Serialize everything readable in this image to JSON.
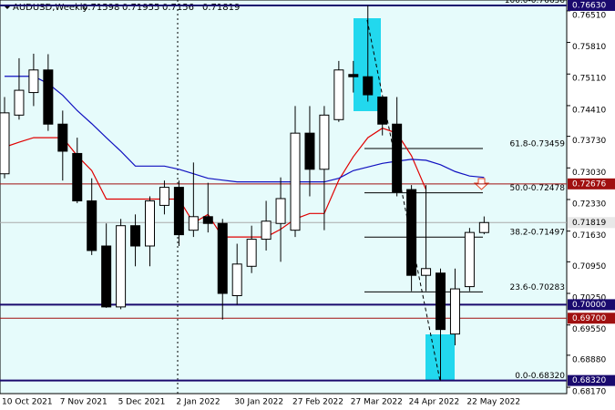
{
  "chart_data": {
    "type": "candlestick",
    "title": "AUDUSD,Weekly",
    "categories": [
      "10 Oct 2021",
      null,
      null,
      null,
      "7 Nov 2021",
      null,
      null,
      null,
      "5 Dec 2021",
      null,
      null,
      null,
      "2 Jan 2022",
      null,
      null,
      null,
      "30 Jan 2022",
      null,
      null,
      null,
      "27 Feb 2022",
      null,
      null,
      null,
      "27 Mar 2022",
      null,
      null,
      null,
      "24 Apr 2022",
      null,
      null,
      null,
      "22 May 2022",
      null
    ],
    "open": [
      0.729,
      0.742,
      0.747,
      0.752,
      0.74,
      0.7335,
      0.723,
      0.713,
      0.6995,
      0.7175,
      0.713,
      0.722,
      0.726,
      0.7165,
      0.7195,
      0.718,
      0.702,
      0.7085,
      0.7145,
      0.718,
      0.7165,
      0.738,
      0.73,
      0.741,
      0.751,
      0.7505,
      0.746,
      0.74,
      0.7255,
      0.7065,
      0.707,
      0.6935,
      0.704,
      0.71598
    ],
    "high": [
      0.746,
      0.7546,
      0.7556,
      0.7555,
      0.743,
      0.737,
      0.728,
      0.718,
      0.719,
      0.72,
      0.724,
      0.7275,
      0.7275,
      0.7315,
      0.727,
      0.719,
      0.7135,
      0.7175,
      0.723,
      0.7282,
      0.744,
      0.744,
      0.744,
      0.754,
      0.754,
      0.7663,
      0.7455,
      0.746,
      0.7265,
      0.7265,
      0.708,
      0.708,
      0.717,
      0.71955
    ],
    "low": [
      0.728,
      0.741,
      0.744,
      0.7385,
      0.7275,
      0.7225,
      0.711,
      0.6993,
      0.699,
      0.7085,
      0.7085,
      0.72,
      0.713,
      0.715,
      0.716,
      0.6967,
      0.7,
      0.707,
      0.712,
      0.7095,
      0.715,
      0.724,
      0.7165,
      0.7405,
      0.747,
      0.745,
      0.7375,
      0.724,
      0.703,
      0.703,
      0.6832,
      0.691,
      0.703,
      0.7156
    ],
    "close": [
      0.7425,
      0.7475,
      0.752,
      0.74,
      0.734,
      0.723,
      0.712,
      0.6995,
      0.7175,
      0.713,
      0.723,
      0.726,
      0.7155,
      0.7195,
      0.718,
      0.7025,
      0.709,
      0.7145,
      0.7185,
      0.7235,
      0.738,
      0.73,
      0.742,
      0.752,
      0.7505,
      0.7465,
      0.74,
      0.725,
      0.7065,
      0.708,
      0.6945,
      0.7035,
      0.716,
      0.71819
    ],
    "series": [
      {
        "color": "#e00000",
        "values": [
          0.7349,
          0.736,
          0.737,
          0.737,
          0.737,
          0.733,
          0.7297,
          0.7234,
          0.7234,
          0.7234,
          0.7234,
          0.7234,
          0.7234,
          0.7181,
          0.72,
          0.715,
          0.715,
          0.715,
          0.715,
          0.7167,
          0.719,
          0.7202,
          0.7202,
          0.7276,
          0.7328,
          0.737,
          0.7391,
          0.738,
          0.733,
          0.7255,
          null,
          null,
          null,
          null
        ]
      },
      {
        "color": "#1010c0",
        "values": [
          0.7506,
          0.7506,
          0.7506,
          0.749,
          0.7464,
          0.743,
          0.7401,
          0.737,
          0.734,
          0.7307,
          0.7307,
          0.7307,
          0.73,
          0.729,
          0.728,
          0.7276,
          0.7272,
          0.7272,
          0.7272,
          0.7272,
          0.7272,
          0.7272,
          0.7272,
          0.728,
          0.7297,
          0.7305,
          0.7313,
          0.7318,
          0.7322,
          0.732,
          0.731,
          0.7295,
          0.7285,
          0.7282
        ]
      }
    ],
    "ylim": [
      0.6803,
      0.7675
    ],
    "yticks": [
      {
        "value": 0.7651,
        "label": "0.76510"
      },
      {
        "value": 0.7581,
        "label": "0.75810"
      },
      {
        "value": 0.7511,
        "label": "0.75110"
      },
      {
        "value": 0.7441,
        "label": "0.74410"
      },
      {
        "value": 0.7373,
        "label": "0.73730"
      },
      {
        "value": 0.7303,
        "label": "0.73030"
      },
      {
        "value": 0.7233,
        "label": "0.72330"
      },
      {
        "value": 0.7163,
        "label": "0.71630"
      },
      {
        "value": 0.7095,
        "label": "0.70950"
      },
      {
        "value": 0.7025,
        "label": "0.70250"
      },
      {
        "value": 0.6955,
        "label": "0.69550"
      },
      {
        "value": 0.6888,
        "label": "0.68880"
      },
      {
        "value": 0.6817,
        "label": "0.68170"
      }
    ],
    "fib_levels": [
      {
        "value": 0.76636,
        "label": "100.0-0.76636"
      },
      {
        "value": 0.73459,
        "label": "61.8-0.73459"
      },
      {
        "value": 0.72478,
        "label": "50.0-0.72478"
      },
      {
        "value": 0.71497,
        "label": "38.2-0.71497"
      },
      {
        "value": 0.70283,
        "label": "23.6-0.70283"
      },
      {
        "value": 0.6832,
        "label": "0.0-0.68320"
      }
    ],
    "price_tags": [
      {
        "value": 0.7663,
        "label": "0.76630",
        "color": "#1a0a6e"
      },
      {
        "value": 0.72676,
        "label": "0.72676",
        "color": "#a01010"
      },
      {
        "value": 0.71819,
        "label": "0.71819",
        "color": "#e8e8e8"
      },
      {
        "value": 0.7,
        "label": "0.70000",
        "color": "#1a0a6e"
      },
      {
        "value": 0.697,
        "label": "0.69700",
        "color": "#a01010"
      },
      {
        "value": 0.6832,
        "label": "0.68320",
        "color": "#1a0a6e"
      }
    ]
  }
}
